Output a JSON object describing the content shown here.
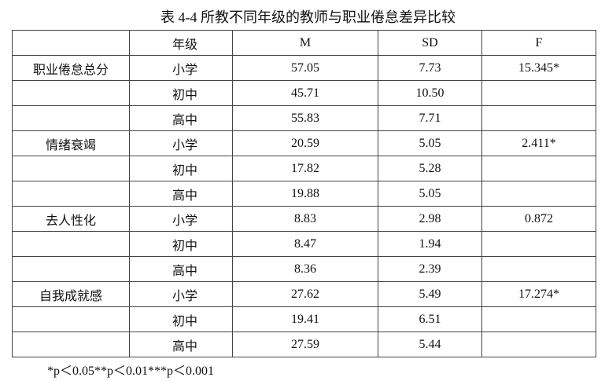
{
  "title": "表 4-4 所教不同年级的教师与职业倦怠差异比较",
  "table": {
    "header": [
      "年级",
      "M",
      "SD",
      "F"
    ],
    "groups": [
      {
        "name": "职业倦怠总分",
        "f": "15.345*",
        "rows": [
          {
            "grade": "小学",
            "m": "57.05",
            "sd": "7.73"
          },
          {
            "grade": "初中",
            "m": "45.71",
            "sd": "10.50"
          },
          {
            "grade": "高中",
            "m": "55.83",
            "sd": "7.71"
          }
        ]
      },
      {
        "name": "情绪衰竭",
        "f": "2.411*",
        "rows": [
          {
            "grade": "小学",
            "m": "20.59",
            "sd": "5.05"
          },
          {
            "grade": "初中",
            "m": "17.82",
            "sd": "5.28"
          },
          {
            "grade": "高中",
            "m": "19.88",
            "sd": "5.05"
          }
        ]
      },
      {
        "name": "去人性化",
        "f": "0.872",
        "rows": [
          {
            "grade": "小学",
            "m": "8.83",
            "sd": "2.98"
          },
          {
            "grade": "初中",
            "m": "8.47",
            "sd": "1.94"
          },
          {
            "grade": "高中",
            "m": "8.36",
            "sd": "2.39"
          }
        ]
      },
      {
        "name": "自我成就感",
        "f": "17.274*",
        "rows": [
          {
            "grade": "小学",
            "m": "27.62",
            "sd": "5.49"
          },
          {
            "grade": "初中",
            "m": "19.41",
            "sd": "6.51"
          },
          {
            "grade": "高中",
            "m": "27.59",
            "sd": "5.44"
          }
        ]
      }
    ]
  },
  "footnote": "*p＜0.05**p＜0.01***p＜0.001"
}
